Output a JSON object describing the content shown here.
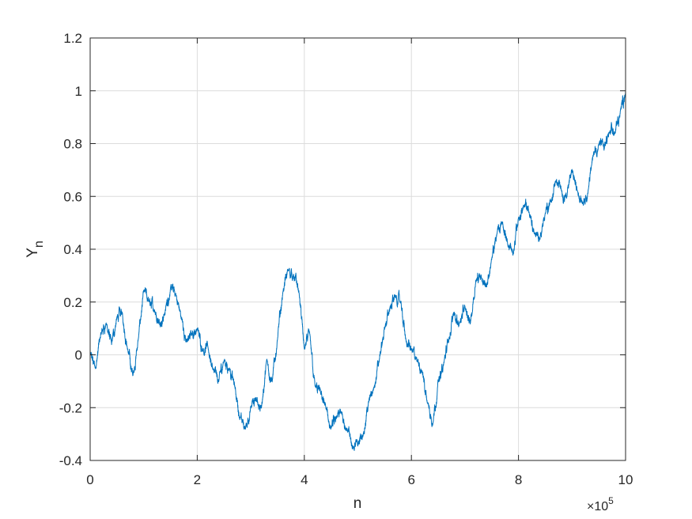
{
  "chart_data": {
    "type": "line",
    "title": "",
    "xlabel": "n",
    "ylabel_main": "Y",
    "ylabel_sub": "n",
    "x_exponent_prefix": "×10",
    "x_exponent": "5",
    "xlim": [
      0,
      10
    ],
    "ylim": [
      -0.4,
      1.2
    ],
    "x_ticks": [
      0,
      2,
      4,
      6,
      8,
      10
    ],
    "x_tick_labels": [
      "0",
      "2",
      "4",
      "6",
      "8",
      "10"
    ],
    "y_ticks": [
      -0.4,
      -0.2,
      0,
      0.2,
      0.4,
      0.6,
      0.8,
      1,
      1.2
    ],
    "y_tick_labels": [
      "-0.4",
      "-0.2",
      "0",
      "0.2",
      "0.4",
      "0.6",
      "0.8",
      "1",
      "1.2"
    ],
    "grid": true,
    "line_color": "#0072BD",
    "series": [
      {
        "name": "",
        "x": [
          0,
          0.1,
          0.2,
          0.3,
          0.4,
          0.5,
          0.6,
          0.7,
          0.8,
          0.9,
          1.0,
          1.1,
          1.2,
          1.3,
          1.4,
          1.5,
          1.6,
          1.7,
          1.8,
          1.9,
          2.0,
          2.1,
          2.2,
          2.3,
          2.4,
          2.5,
          2.6,
          2.7,
          2.8,
          2.9,
          3.0,
          3.1,
          3.2,
          3.3,
          3.4,
          3.5,
          3.6,
          3.7,
          3.8,
          3.9,
          4.0,
          4.1,
          4.2,
          4.3,
          4.4,
          4.5,
          4.6,
          4.7,
          4.8,
          4.9,
          5.0,
          5.1,
          5.2,
          5.3,
          5.4,
          5.5,
          5.6,
          5.7,
          5.8,
          5.9,
          6.0,
          6.1,
          6.2,
          6.3,
          6.4,
          6.5,
          6.6,
          6.7,
          6.8,
          6.9,
          7.0,
          7.1,
          7.2,
          7.3,
          7.4,
          7.5,
          7.6,
          7.7,
          7.8,
          7.9,
          8.0,
          8.1,
          8.2,
          8.3,
          8.4,
          8.5,
          8.6,
          8.7,
          8.8,
          8.9,
          9.0,
          9.1,
          9.2,
          9.3,
          9.4,
          9.5,
          9.6,
          9.7,
          9.8,
          9.9,
          10.0
        ],
        "y": [
          0.0,
          -0.05,
          0.08,
          0.12,
          0.04,
          0.14,
          0.16,
          0.02,
          -0.08,
          0.06,
          0.24,
          0.2,
          0.17,
          0.12,
          0.16,
          0.25,
          0.23,
          0.14,
          0.05,
          0.08,
          0.1,
          0.02,
          0.03,
          -0.06,
          -0.1,
          -0.02,
          -0.05,
          -0.12,
          -0.24,
          -0.28,
          -0.2,
          -0.17,
          -0.2,
          -0.02,
          -0.1,
          0.06,
          0.24,
          0.32,
          0.3,
          0.24,
          0.02,
          0.08,
          -0.12,
          -0.14,
          -0.2,
          -0.28,
          -0.24,
          -0.22,
          -0.28,
          -0.35,
          -0.34,
          -0.3,
          -0.18,
          -0.12,
          -0.02,
          0.1,
          0.18,
          0.22,
          0.2,
          0.05,
          0.02,
          -0.02,
          -0.06,
          -0.18,
          -0.26,
          -0.1,
          -0.04,
          0.06,
          0.16,
          0.12,
          0.18,
          0.12,
          0.28,
          0.3,
          0.26,
          0.36,
          0.46,
          0.5,
          0.42,
          0.38,
          0.52,
          0.56,
          0.54,
          0.46,
          0.44,
          0.54,
          0.58,
          0.66,
          0.62,
          0.6,
          0.7,
          0.62,
          0.58,
          0.62,
          0.76,
          0.8,
          0.78,
          0.84,
          0.84,
          0.92,
          1.0
        ]
      }
    ]
  }
}
